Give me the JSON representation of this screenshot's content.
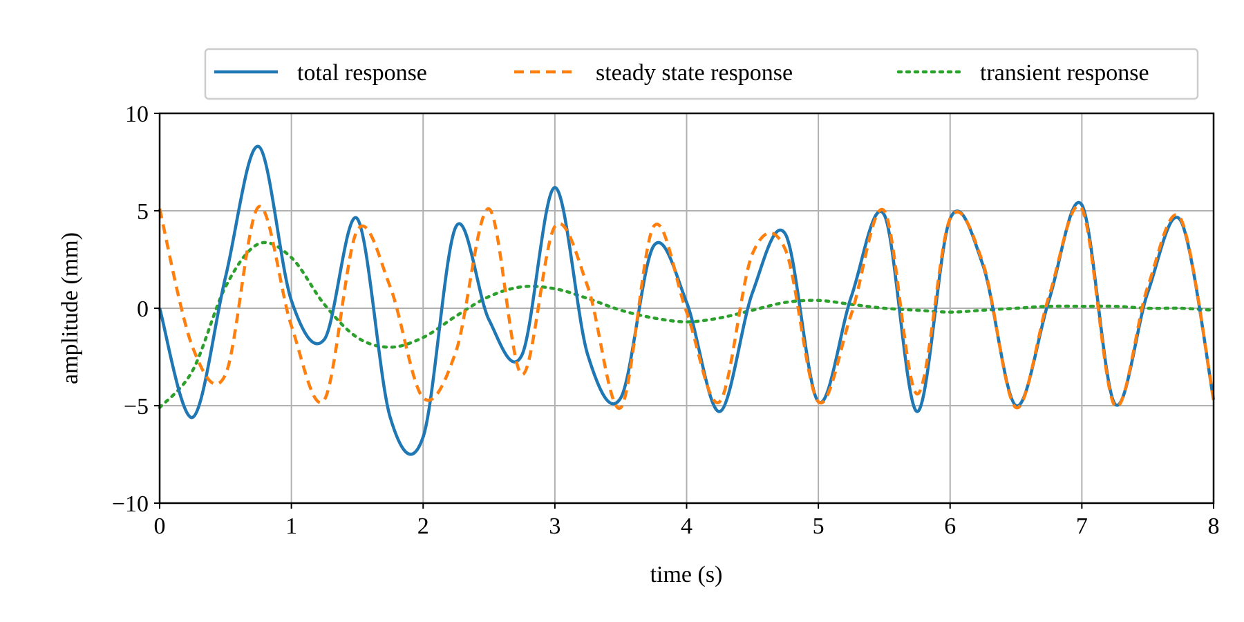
{
  "chart_data": {
    "type": "line",
    "title": "",
    "xlabel": "time (s)",
    "ylabel": "amplitude (mm)",
    "xlim": [
      0,
      8
    ],
    "ylim": [
      -10,
      10
    ],
    "xticks": [
      0,
      1,
      2,
      3,
      4,
      5,
      6,
      7,
      8
    ],
    "xtick_labels": [
      "0",
      "1",
      "2",
      "3",
      "4",
      "5",
      "6",
      "7",
      "8"
    ],
    "yticks": [
      -10,
      -5,
      0,
      5,
      10
    ],
    "ytick_labels": [
      "−10",
      "−5",
      "0",
      "5",
      "10"
    ],
    "grid": true,
    "legend_position": "top, above the plot, single row",
    "x": [
      0,
      0.25,
      0.5,
      0.75,
      1,
      1.25,
      1.5,
      1.75,
      2,
      2.25,
      2.5,
      2.75,
      3,
      3.25,
      3.5,
      3.75,
      4,
      4.25,
      4.5,
      4.75,
      5,
      5.25,
      5.5,
      5.75,
      6,
      6.25,
      6.5,
      6.75,
      7,
      7.25,
      7.5,
      7.75,
      8
    ],
    "series": [
      {
        "name": "total response",
        "color": "#1f77b4",
        "style": "solid",
        "values": [
          0,
          -5.6,
          1.6,
          8.3,
          0.4,
          -1.6,
          4.6,
          -5.6,
          -6.6,
          4.2,
          -0.6,
          -2.4,
          6.2,
          -2.4,
          -4.6,
          3.2,
          0.3,
          -5.3,
          0.8,
          3.8,
          -4.8,
          0.6,
          4.8,
          -5.3,
          4.6,
          2.2,
          -5.0,
          0.4,
          5.3,
          -4.9,
          0.8,
          4.5,
          -4.7
        ]
      },
      {
        "name": "steady state response",
        "color": "#ff7f0e",
        "style": "dashed",
        "values": [
          5.1,
          -2.0,
          -3.4,
          5.2,
          -0.9,
          -4.7,
          4.0,
          1.1,
          -4.6,
          -2.2,
          5.1,
          -3.4,
          4.2,
          1.1,
          -5.1,
          4.2,
          -0.2,
          -4.8,
          2.8,
          3.0,
          -4.8,
          -0.3,
          5.0,
          -4.4,
          4.6,
          2.3,
          -5.1,
          0.6,
          5.1,
          -5.0,
          1.1,
          4.6,
          -4.7
        ]
      },
      {
        "name": "transient response",
        "color": "#2ca02c",
        "style": "dotted",
        "values": [
          -5.1,
          -3.2,
          1.1,
          3.3,
          2.6,
          0.2,
          -1.5,
          -2.0,
          -1.5,
          -0.4,
          0.6,
          1.1,
          1.0,
          0.5,
          -0.1,
          -0.5,
          -0.7,
          -0.5,
          -0.1,
          0.3,
          0.4,
          0.2,
          0.0,
          -0.1,
          -0.2,
          -0.1,
          0.0,
          0.1,
          0.1,
          0.1,
          0.0,
          0.0,
          -0.1
        ]
      }
    ]
  }
}
